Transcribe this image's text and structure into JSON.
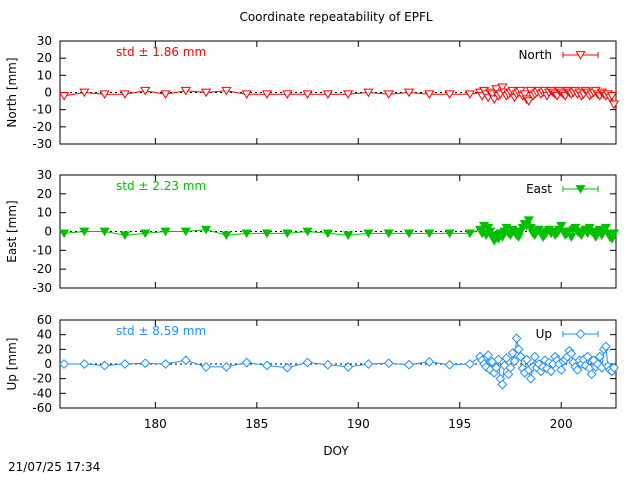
{
  "title": "Coordinate repeatability of EPFL",
  "timestamp": "21/07/25 17:34",
  "xlabel": "DOY",
  "xlim": [
    175.3,
    202.7
  ],
  "xticks": [
    180,
    185,
    190,
    195,
    200
  ],
  "chart_data": [
    {
      "type": "line",
      "name": "North",
      "ylabel": "North [mm]",
      "ylim": [
        -30,
        30
      ],
      "yticks": [
        30,
        20,
        10,
        0,
        -10,
        -20,
        -30
      ],
      "legend": "North",
      "std_text": "std ± 1.86 mm",
      "color": "#ff0000",
      "marker": "triangle-down-open",
      "legend_position": "top-right",
      "zero_line": true,
      "x": [
        175.5,
        176.5,
        177.5,
        178.5,
        179.5,
        180.5,
        181.5,
        182.5,
        183.5,
        184.5,
        185.5,
        186.5,
        187.5,
        188.5,
        189.5,
        190.5,
        191.5,
        192.5,
        193.5,
        194.5,
        195.5,
        196.0,
        196.1,
        196.2,
        196.3,
        196.4,
        196.5,
        196.6,
        196.7,
        196.8,
        196.9,
        197.0,
        197.1,
        197.2,
        197.3,
        197.4,
        197.5,
        197.6,
        197.7,
        197.8,
        197.9,
        198.0,
        198.1,
        198.2,
        198.3,
        198.4,
        198.5,
        198.6,
        198.7,
        198.8,
        198.9,
        199.0,
        199.1,
        199.2,
        199.3,
        199.4,
        199.5,
        199.6,
        199.7,
        199.8,
        199.9,
        200.0,
        200.1,
        200.2,
        200.3,
        200.4,
        200.5,
        200.6,
        200.7,
        200.8,
        200.9,
        201.0,
        201.1,
        201.2,
        201.3,
        201.4,
        201.5,
        201.6,
        201.7,
        201.8,
        201.9,
        202.0,
        202.1,
        202.2,
        202.3,
        202.4,
        202.5,
        202.6
      ],
      "y": [
        -2,
        0,
        -1,
        -1,
        1,
        -1,
        1,
        0,
        1,
        -1,
        -1,
        -1,
        -1,
        -1,
        -1,
        0,
        -1,
        0,
        -1,
        -1,
        -1,
        0,
        -2,
        1,
        -1,
        -3,
        0,
        -1,
        -4,
        2,
        -2,
        -1,
        3,
        0,
        -2,
        -1,
        0,
        1,
        -3,
        -1,
        0,
        1,
        -2,
        -1,
        -4,
        -5,
        1,
        -2,
        -1,
        0,
        1,
        -1,
        0,
        1,
        -2,
        0,
        1,
        0,
        -1,
        -2,
        1,
        0,
        -1,
        -2,
        1,
        0,
        -1,
        0,
        1,
        -1,
        0,
        -2,
        -1,
        1,
        0,
        -2,
        -1,
        0,
        1,
        -1,
        -2,
        0,
        -1,
        -2,
        -1,
        -3,
        -2,
        -7
      ]
    },
    {
      "type": "line",
      "name": "East",
      "ylabel": "East [mm]",
      "ylim": [
        -30,
        30
      ],
      "yticks": [
        30,
        20,
        10,
        0,
        -10,
        -20,
        -30
      ],
      "legend": "East",
      "std_text": "std ± 2.23 mm",
      "color": "#00c000",
      "marker": "triangle-down-filled",
      "legend_position": "top-right",
      "zero_line": true,
      "x": [
        175.5,
        176.5,
        177.5,
        178.5,
        179.5,
        180.5,
        181.5,
        182.5,
        183.5,
        184.5,
        185.5,
        186.5,
        187.5,
        188.5,
        189.5,
        190.5,
        191.5,
        192.5,
        193.5,
        194.5,
        195.5,
        196.0,
        196.1,
        196.2,
        196.3,
        196.4,
        196.5,
        196.6,
        196.7,
        196.8,
        196.9,
        197.0,
        197.1,
        197.2,
        197.3,
        197.4,
        197.5,
        197.6,
        197.7,
        197.8,
        197.9,
        198.0,
        198.1,
        198.2,
        198.3,
        198.4,
        198.5,
        198.6,
        198.7,
        198.8,
        198.9,
        199.0,
        199.1,
        199.2,
        199.3,
        199.4,
        199.5,
        199.6,
        199.7,
        199.8,
        199.9,
        200.0,
        200.1,
        200.2,
        200.3,
        200.4,
        200.5,
        200.6,
        200.7,
        200.8,
        200.9,
        201.0,
        201.1,
        201.2,
        201.3,
        201.4,
        201.5,
        201.6,
        201.7,
        201.8,
        201.9,
        202.0,
        202.1,
        202.2,
        202.3,
        202.4,
        202.5,
        202.6
      ],
      "y": [
        -1,
        0,
        0,
        -2,
        -1,
        0,
        0,
        1,
        -2,
        -1,
        -1,
        -1,
        0,
        -1,
        -2,
        -1,
        -1,
        -1,
        -1,
        -1,
        -1,
        1,
        -1,
        3,
        -2,
        2,
        0,
        -3,
        -5,
        -2,
        -4,
        -1,
        -3,
        0,
        2,
        -1,
        -2,
        1,
        0,
        -2,
        -3,
        0,
        2,
        4,
        3,
        6,
        2,
        -1,
        -2,
        0,
        1,
        -1,
        -3,
        -2,
        0,
        1,
        -1,
        0,
        -2,
        -1,
        1,
        3,
        0,
        -2,
        -1,
        0,
        -3,
        1,
        2,
        0,
        -1,
        -2,
        0,
        1,
        -1,
        2,
        0,
        -1,
        -3,
        0,
        1,
        -2,
        0,
        2,
        -1,
        -3,
        -4,
        -1
      ]
    },
    {
      "type": "line",
      "name": "Up",
      "ylabel": "Up [mm]",
      "ylim": [
        -60,
        60
      ],
      "yticks": [
        60,
        40,
        20,
        0,
        -20,
        -40,
        -60
      ],
      "legend": "Up",
      "std_text": "std ± 8.59 mm",
      "color": "#1e90ff",
      "marker": "diamond-open",
      "legend_position": "top-right",
      "zero_line": true,
      "x": [
        175.5,
        176.5,
        177.5,
        178.5,
        179.5,
        180.5,
        181.5,
        182.5,
        183.5,
        184.5,
        185.5,
        186.5,
        187.5,
        188.5,
        189.5,
        190.5,
        191.5,
        192.5,
        193.5,
        194.5,
        195.5,
        196.0,
        196.1,
        196.2,
        196.3,
        196.4,
        196.5,
        196.6,
        196.7,
        196.8,
        196.9,
        197.0,
        197.1,
        197.2,
        197.3,
        197.4,
        197.5,
        197.6,
        197.7,
        197.8,
        197.9,
        198.0,
        198.1,
        198.2,
        198.3,
        198.4,
        198.5,
        198.6,
        198.7,
        198.8,
        198.9,
        199.0,
        199.1,
        199.2,
        199.3,
        199.4,
        199.5,
        199.6,
        199.7,
        199.8,
        199.9,
        200.0,
        200.1,
        200.2,
        200.3,
        200.4,
        200.5,
        200.6,
        200.7,
        200.8,
        200.9,
        201.0,
        201.1,
        201.2,
        201.3,
        201.4,
        201.5,
        201.6,
        201.7,
        201.8,
        201.9,
        202.0,
        202.1,
        202.2,
        202.3,
        202.4,
        202.5,
        202.6
      ],
      "y": [
        0,
        0,
        -2,
        0,
        1,
        0,
        5,
        -4,
        -4,
        2,
        -2,
        -5,
        2,
        -1,
        -4,
        0,
        1,
        -1,
        3,
        -1,
        0,
        10,
        5,
        0,
        -4,
        12,
        -8,
        3,
        -12,
        -5,
        6,
        -20,
        -28,
        -2,
        8,
        -14,
        -5,
        15,
        4,
        35,
        20,
        10,
        -6,
        -12,
        6,
        -8,
        -20,
        -4,
        10,
        -5,
        0,
        -10,
        -4,
        5,
        -6,
        2,
        -10,
        0,
        10,
        5,
        0,
        -8,
        4,
        6,
        10,
        18,
        14,
        2,
        -4,
        -8,
        5,
        0,
        6,
        -2,
        10,
        -6,
        -14,
        5,
        -4,
        0,
        10,
        -5,
        20,
        24,
        -3,
        -8,
        -10,
        -5
      ]
    }
  ]
}
